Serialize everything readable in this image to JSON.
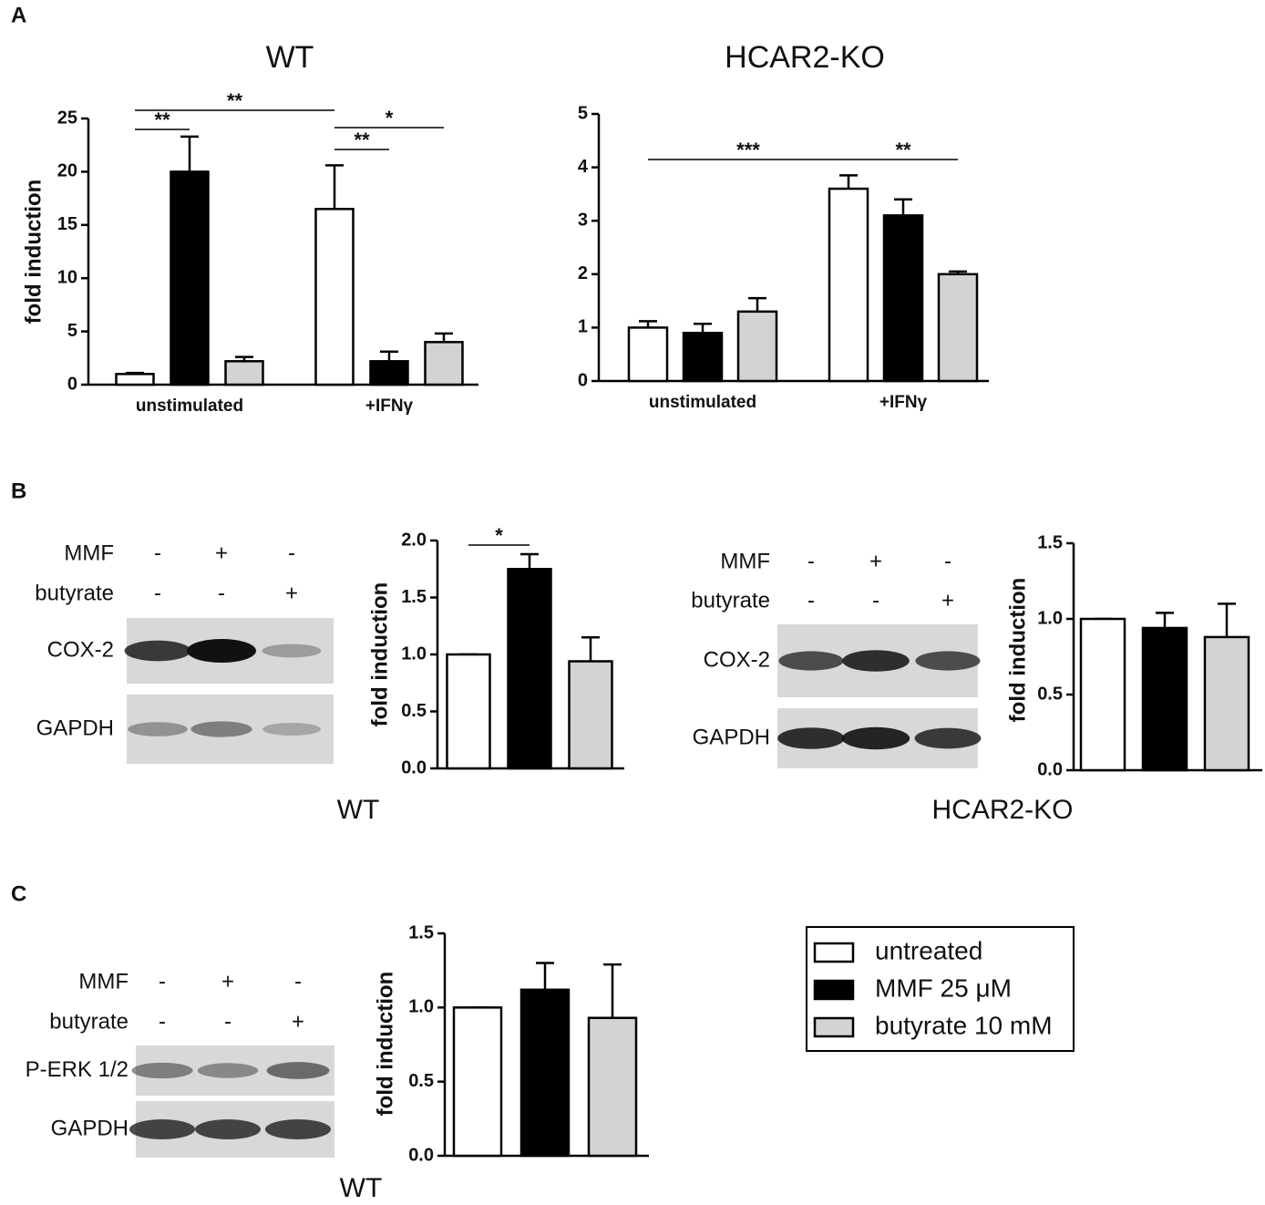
{
  "panel_labels": [
    "A",
    "B",
    "C"
  ],
  "chart_data": [
    {
      "type": "bar",
      "title": "WT",
      "ylabel": "fold induction",
      "categories": [
        "unstimulated",
        "+IFNγ"
      ],
      "series": [
        {
          "color": "#ffffff",
          "values": [
            1.0,
            16.5
          ],
          "errors": [
            0.1,
            4.1
          ]
        },
        {
          "color": "#000000",
          "values": [
            20.0,
            2.2
          ],
          "errors": [
            3.3,
            0.9
          ]
        },
        {
          "color": "#d3d3d3",
          "values": [
            2.2,
            4.0
          ],
          "errors": [
            0.4,
            0.8
          ]
        }
      ],
      "ylim": [
        0,
        25
      ],
      "yticks": [
        0,
        5,
        10,
        15,
        20,
        25
      ],
      "annotations": [
        {
          "text": "**",
          "from": [
            0,
            0
          ],
          "to": [
            1,
            0
          ]
        },
        {
          "text": "**",
          "from": [
            0,
            0
          ],
          "to": [
            0,
            1
          ]
        },
        {
          "text": "**",
          "from": [
            0,
            1
          ],
          "to": [
            1,
            1
          ]
        },
        {
          "text": "*",
          "from": [
            0,
            1
          ],
          "to": [
            2,
            1
          ]
        }
      ]
    },
    {
      "type": "bar",
      "title": "HCAR2-KO",
      "categories": [
        "unstimulated",
        "+IFNγ"
      ],
      "series": [
        {
          "color": "#ffffff",
          "values": [
            1.0,
            3.6
          ],
          "errors": [
            0.12,
            0.25
          ]
        },
        {
          "color": "#000000",
          "values": [
            0.9,
            3.1
          ],
          "errors": [
            0.17,
            0.3
          ]
        },
        {
          "color": "#d3d3d3",
          "values": [
            1.3,
            2.0
          ],
          "errors": [
            0.25,
            0.05
          ]
        }
      ],
      "ylim": [
        0,
        5
      ],
      "yticks": [
        0,
        1,
        2,
        3,
        4,
        5
      ],
      "annotations": [
        {
          "text": "***",
          "from": [
            0,
            0
          ],
          "to": [
            0,
            1
          ]
        },
        {
          "text": "**",
          "from": [
            0,
            1
          ],
          "to": [
            2,
            1
          ]
        }
      ]
    },
    {
      "type": "bar",
      "ylabel": "fold induction",
      "categories": [
        null
      ],
      "series": [
        {
          "color": "#ffffff",
          "values": [
            1.0
          ],
          "errors": [
            0
          ]
        },
        {
          "color": "#000000",
          "values": [
            1.75
          ],
          "errors": [
            0.13
          ]
        },
        {
          "color": "#d3d3d3",
          "values": [
            0.94
          ],
          "errors": [
            0.21
          ]
        }
      ],
      "ylim": [
        0,
        2
      ],
      "yticks": [
        {
          "value": 0,
          "label": "0.0"
        },
        0.5,
        {
          "value": 1,
          "label": "1.0"
        },
        1.5,
        {
          "value": 2,
          "label": "2.0"
        }
      ],
      "annotations": [
        {
          "text": "*",
          "from": [
            0,
            0
          ],
          "to": [
            1,
            0
          ]
        }
      ]
    },
    {
      "type": "bar",
      "ylabel": "fold induction",
      "categories": [
        null
      ],
      "series": [
        {
          "color": "#ffffff",
          "values": [
            1.0
          ],
          "errors": [
            0
          ]
        },
        {
          "color": "#000000",
          "values": [
            0.94
          ],
          "errors": [
            0.1
          ]
        },
        {
          "color": "#d3d3d3",
          "values": [
            0.88
          ],
          "errors": [
            0.22
          ]
        }
      ],
      "ylim": [
        0,
        1.5
      ],
      "yticks": [
        {
          "value": 0,
          "label": "0.0"
        },
        0.5,
        {
          "value": 1,
          "label": "1.0"
        },
        1.5
      ]
    },
    {
      "type": "bar",
      "ylabel": "fold induction",
      "categories": [
        null
      ],
      "series": [
        {
          "color": "#ffffff",
          "values": [
            1.0
          ],
          "errors": [
            0
          ]
        },
        {
          "color": "#000000",
          "values": [
            1.12
          ],
          "errors": [
            0.18
          ]
        },
        {
          "color": "#d3d3d3",
          "values": [
            0.93
          ],
          "errors": [
            0.36
          ]
        }
      ],
      "ylim": [
        0,
        1.5
      ],
      "yticks": [
        {
          "value": 0,
          "label": "0.0"
        },
        0.5,
        {
          "value": 1,
          "label": "1.0"
        },
        1.5
      ]
    }
  ],
  "blots": [
    {
      "treatments": [
        {
          "name": "MMF",
          "signs": [
            "-",
            "+",
            "-"
          ]
        },
        {
          "name": "butyrate",
          "signs": [
            "-",
            "-",
            "+"
          ]
        }
      ],
      "bands": [
        "COX-2",
        "GAPDH"
      ]
    },
    {
      "treatments": [
        {
          "name": "MMF",
          "signs": [
            "-",
            "+",
            "-"
          ]
        },
        {
          "name": "butyrate",
          "signs": [
            "-",
            "-",
            "+"
          ]
        }
      ],
      "bands": [
        "COX-2",
        "GAPDH"
      ]
    },
    {
      "treatments": [
        {
          "name": "MMF",
          "signs": [
            "-",
            "+",
            "-"
          ]
        },
        {
          "name": "butyrate",
          "signs": [
            "-",
            "-",
            "+"
          ]
        }
      ],
      "bands": [
        "P-ERK 1/2",
        "GAPDH"
      ]
    }
  ],
  "captions": [
    "WT",
    "HCAR2-KO",
    "WT"
  ],
  "legend": [
    {
      "name": "untreated",
      "color": "#ffffff"
    },
    {
      "name": "MMF 25 μM",
      "color": "#000000"
    },
    {
      "name": "butyrate 10 mM",
      "color": "#d3d3d3"
    }
  ]
}
